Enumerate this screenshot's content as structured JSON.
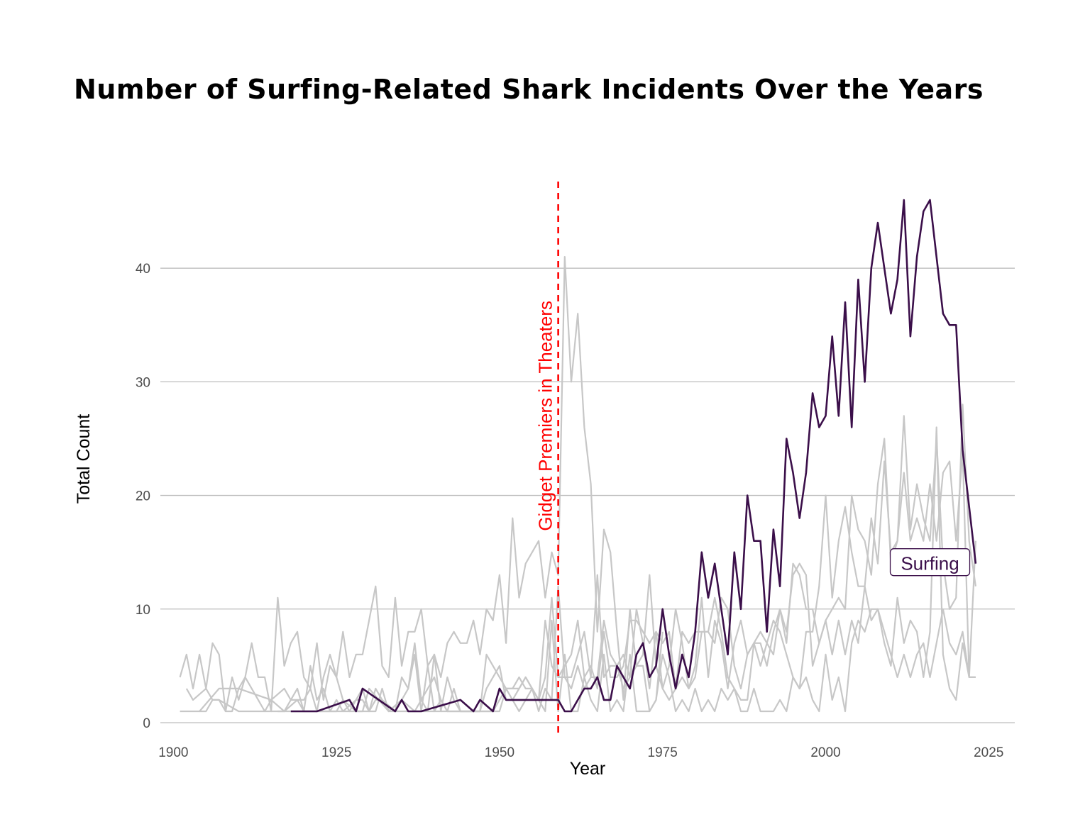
{
  "chart_data": {
    "type": "line",
    "title": "Number of Surfing-Related Shark Incidents Over the Years",
    "xlabel": "Year",
    "ylabel": "Total Count",
    "xlim": [
      1898,
      2029
    ],
    "ylim": [
      -0.5,
      48
    ],
    "x_ticks": [
      1900,
      1925,
      1950,
      1975,
      2000,
      2025
    ],
    "y_ticks": [
      0,
      10,
      20,
      30,
      40
    ],
    "grid": "horizontal major",
    "highlight_color": "#3b0f4a",
    "background_color": "#c7c7c7",
    "annotation": {
      "text": "Gidget Premiers in Theaters",
      "x": 1959,
      "color": "#ff0000",
      "style": "dashed vertical line"
    },
    "highlight_label": {
      "text": "Surfing",
      "x": 2016,
      "y": 14
    },
    "highlight": {
      "name": "Surfing",
      "x": [
        1918,
        1922,
        1927,
        1928,
        1929,
        1934,
        1935,
        1936,
        1938,
        1944,
        1946,
        1947,
        1949,
        1950,
        1951,
        1952,
        1953,
        1954,
        1955,
        1956,
        1957,
        1958,
        1959,
        1960,
        1961,
        1963,
        1964,
        1965,
        1966,
        1967,
        1968,
        1970,
        1971,
        1972,
        1973,
        1974,
        1975,
        1976,
        1977,
        1978,
        1979,
        1980,
        1981,
        1982,
        1983,
        1984,
        1985,
        1986,
        1987,
        1988,
        1989,
        1990,
        1991,
        1992,
        1993,
        1994,
        1995,
        1996,
        1997,
        1998,
        1999,
        2000,
        2001,
        2002,
        2003,
        2004,
        2005,
        2006,
        2007,
        2008,
        2009,
        2010,
        2011,
        2012,
        2013,
        2014,
        2015,
        2016,
        2017,
        2018,
        2019,
        2020,
        2021,
        2022,
        2023
      ],
      "y": [
        1,
        1,
        2,
        1,
        3,
        1,
        2,
        1,
        1,
        2,
        1,
        2,
        1,
        3,
        2,
        2,
        2,
        2,
        2,
        2,
        2,
        2,
        2,
        1,
        1,
        3,
        3,
        4,
        2,
        2,
        5,
        3,
        6,
        7,
        4,
        5,
        10,
        6,
        3,
        6,
        4,
        8,
        15,
        11,
        14,
        10,
        6,
        15,
        10,
        20,
        16,
        16,
        8,
        17,
        12,
        25,
        22,
        18,
        22,
        29,
        26,
        27,
        34,
        27,
        37,
        26,
        39,
        30,
        40,
        44,
        40,
        36,
        39,
        46,
        34,
        41,
        45,
        46,
        41,
        36,
        35,
        35,
        24,
        19,
        14
      ]
    },
    "background_series": [
      {
        "x": [
          1901,
          1902,
          1903,
          1904,
          1905,
          1906,
          1907,
          1908,
          1909,
          1910,
          1911,
          1912,
          1913,
          1914,
          1915,
          1916,
          1917,
          1918,
          1919,
          1920,
          1921,
          1922,
          1923,
          1924,
          1925,
          1926,
          1927,
          1928,
          1929,
          1930,
          1931,
          1932,
          1933,
          1934,
          1935,
          1936,
          1937,
          1938,
          1939,
          1940,
          1941,
          1942,
          1943,
          1944,
          1945,
          1946,
          1947,
          1948,
          1949,
          1950,
          1951,
          1952,
          1953,
          1954,
          1955,
          1956,
          1957,
          1958,
          1959,
          1960,
          1961,
          1962,
          1963,
          1964,
          1965,
          1966,
          1967,
          1968,
          1969,
          1970,
          1971,
          1972,
          1973,
          1974,
          1975
        ],
        "y": [
          4,
          6,
          3,
          6,
          3,
          7,
          6,
          1,
          4,
          2,
          4,
          7,
          4,
          4,
          1,
          11,
          5,
          7,
          8,
          4,
          3,
          7,
          2,
          5,
          4,
          8,
          4,
          6,
          6,
          9,
          12,
          5,
          4,
          11,
          5,
          8,
          8,
          10,
          5,
          6,
          4,
          7,
          8,
          7,
          7,
          9,
          6,
          10,
          9,
          13,
          7,
          18,
          11,
          14,
          15,
          16,
          11,
          15,
          13,
          41,
          30,
          36,
          26,
          21,
          8,
          17,
          15,
          8,
          2,
          10,
          5,
          5,
          1,
          2,
          8
        ]
      },
      {
        "x": [
          1902,
          1903,
          1905,
          1906,
          1907,
          1908,
          1909,
          1910,
          1911,
          1913,
          1914,
          1915,
          1917,
          1918,
          1920,
          1921,
          1922,
          1923,
          1924,
          1925,
          1926,
          1927,
          1928,
          1929,
          1930,
          1931,
          1932,
          1934,
          1935,
          1936,
          1937,
          1938,
          1939,
          1940,
          1941,
          1942,
          1943,
          1944,
          1945,
          1946,
          1947,
          1948,
          1949,
          1950,
          1951,
          1952,
          1953,
          1954,
          1955,
          1956,
          1957,
          1958,
          1959,
          1960,
          1961,
          1962,
          1963,
          1964,
          1965,
          1966,
          1967,
          1968,
          1969,
          1970,
          1971,
          1972,
          1973,
          1974,
          1975,
          1976,
          1977,
          1978,
          1979,
          1980,
          1981,
          1982,
          1983,
          1984,
          1985,
          1986,
          1987,
          1988,
          1989,
          1990,
          1991,
          1992,
          1993,
          1994,
          1995,
          1996,
          1997,
          1998,
          1999,
          2000,
          2001,
          2002,
          2003,
          2004,
          2005,
          2006,
          2007,
          2008,
          2009,
          2010,
          2011,
          2012,
          2013,
          2014,
          2015,
          2016,
          2017,
          2018,
          2019,
          2020,
          2021,
          2022,
          2023
        ],
        "y": [
          3,
          2,
          3,
          2,
          2,
          1,
          1,
          3,
          4,
          2,
          1,
          2,
          1,
          2,
          2,
          3,
          1,
          4,
          6,
          4,
          2,
          1,
          2,
          3,
          1,
          3,
          2,
          1,
          4,
          3,
          7,
          2,
          1,
          6,
          1,
          4,
          2,
          1,
          1,
          1,
          1,
          6,
          5,
          4,
          3,
          3,
          3,
          4,
          3,
          2,
          9,
          5,
          4,
          4,
          3,
          5,
          3,
          4,
          13,
          4,
          5,
          5,
          3,
          4,
          5,
          6,
          13,
          5,
          3,
          2,
          3,
          4,
          3,
          5,
          11,
          4,
          9,
          7,
          3,
          7,
          9,
          6,
          7,
          8,
          7,
          9,
          8,
          6,
          4,
          3,
          8,
          8,
          12,
          20,
          11,
          16,
          19,
          15,
          12,
          12,
          18,
          14,
          23,
          15,
          16,
          22,
          16,
          18,
          16,
          21,
          16,
          22,
          23,
          16,
          24,
          4,
          4
        ]
      },
      {
        "x": [
          1901,
          1902,
          1903,
          1904,
          1907,
          1910,
          1915,
          1917,
          1918,
          1919,
          1920,
          1921,
          1922,
          1923,
          1924,
          1925,
          1926,
          1928,
          1929,
          1930,
          1931,
          1932,
          1933,
          1935,
          1936,
          1937,
          1938,
          1939,
          1940,
          1941,
          1942,
          1943,
          1944,
          1945,
          1946,
          1947,
          1948,
          1949,
          1950,
          1951,
          1952,
          1953,
          1954,
          1955,
          1956,
          1957,
          1958,
          1959,
          1960,
          1961,
          1962,
          1963,
          1964,
          1965,
          1966,
          1967,
          1968,
          1969,
          1970,
          1971,
          1972,
          1973,
          1974,
          1975,
          1976,
          1977,
          1978,
          1979,
          1980,
          1981,
          1982,
          1983,
          1984,
          1985,
          1986,
          1987,
          1988,
          1989,
          1990,
          1991,
          1992,
          1993,
          1994,
          1995,
          1996,
          1997,
          1998,
          1999,
          2000,
          2001,
          2002,
          2003,
          2004,
          2005,
          2006,
          2007,
          2008,
          2009,
          2010,
          2011,
          2012,
          2013,
          2014,
          2015,
          2016,
          2017,
          2018,
          2019,
          2020,
          2021,
          2022,
          2023
        ],
        "y": [
          1,
          1,
          1,
          1,
          3,
          3,
          2,
          3,
          2,
          3,
          1,
          5,
          2,
          3,
          1,
          2,
          1,
          2,
          2,
          1,
          2,
          2,
          1,
          2,
          3,
          6,
          1,
          5,
          1,
          2,
          1,
          3,
          1,
          1,
          1,
          1,
          3,
          4,
          5,
          2,
          2,
          3,
          4,
          3,
          1,
          3,
          2,
          12,
          4,
          4,
          6,
          8,
          4,
          4,
          9,
          6,
          5,
          6,
          4,
          10,
          7,
          3,
          8,
          7,
          8,
          3,
          8,
          7,
          8,
          8,
          8,
          7,
          11,
          10,
          5,
          3,
          6,
          7,
          5,
          7,
          6,
          10,
          7,
          14,
          13,
          10,
          10,
          7,
          9,
          10,
          11,
          10,
          20,
          17,
          16,
          13,
          21,
          25,
          14,
          16,
          27,
          17,
          21,
          18,
          16,
          25,
          14,
          10,
          11,
          28,
          16,
          12
        ]
      },
      {
        "x": [
          1904,
          1905,
          1906,
          1907,
          1910,
          1915,
          1918,
          1919,
          1921,
          1922,
          1926,
          1927,
          1929,
          1930,
          1933,
          1934,
          1937,
          1939,
          1940,
          1943,
          1944,
          1946,
          1947,
          1948,
          1949,
          1950,
          1951,
          1952,
          1953,
          1954,
          1955,
          1956,
          1957,
          1958,
          1959,
          1960,
          1961,
          1962,
          1963,
          1964,
          1965,
          1966,
          1967,
          1968,
          1969,
          1970,
          1971,
          1972,
          1973,
          1974,
          1975,
          1976,
          1977,
          1978,
          1979,
          1980,
          1981,
          1982,
          1983,
          1984,
          1985,
          1986,
          1987,
          1988,
          1989,
          1990,
          1991,
          1992,
          1993,
          1994,
          1995,
          1996,
          1997,
          1998,
          1999,
          2000,
          2001,
          2002,
          2003,
          2004,
          2005,
          2006,
          2007,
          2008,
          2009,
          2010,
          2011,
          2012,
          2013,
          2014,
          2015,
          2016,
          2017,
          2018,
          2019,
          2020,
          2021,
          2022,
          2023
        ],
        "y": [
          1,
          1,
          2,
          2,
          1,
          1,
          1,
          1,
          1,
          1,
          1,
          1,
          1,
          3,
          1,
          1,
          1,
          1,
          1,
          1,
          1,
          1,
          1,
          1,
          1,
          2,
          3,
          3,
          4,
          3,
          3,
          2,
          4,
          11,
          4,
          5,
          6,
          9,
          4,
          5,
          3,
          8,
          4,
          4,
          5,
          9,
          9,
          8,
          7,
          8,
          3,
          5,
          10,
          7,
          3,
          4,
          8,
          8,
          11,
          8,
          4,
          3,
          2,
          2,
          7,
          7,
          5,
          8,
          10,
          8,
          13,
          14,
          13,
          5,
          7,
          9,
          6,
          9,
          6,
          9,
          7,
          12,
          9,
          10,
          8,
          6,
          4,
          6,
          4,
          6,
          7,
          4,
          7,
          10,
          7,
          6,
          8,
          4,
          16
        ]
      },
      {
        "x": [
          1916,
          1917,
          1919,
          1920,
          1922,
          1923,
          1925,
          1926,
          1928,
          1929,
          1931,
          1932,
          1933,
          1935,
          1937,
          1938,
          1940,
          1941,
          1942,
          1943,
          1944,
          1945,
          1946,
          1947,
          1948,
          1949,
          1950,
          1951,
          1952,
          1953,
          1954,
          1955,
          1956,
          1957,
          1958,
          1959,
          1960,
          1961,
          1962,
          1963,
          1964,
          1965,
          1966,
          1967,
          1968,
          1969,
          1970,
          1971,
          1972,
          1973,
          1974,
          1975,
          1976,
          1977,
          1978,
          1979,
          1980,
          1981,
          1982,
          1983,
          1984,
          1985,
          1986,
          1987,
          1988,
          1989,
          1990,
          1991,
          1992,
          1993,
          1994,
          1995,
          1996,
          1997,
          1998,
          1999,
          2000,
          2001,
          2002,
          2003,
          2004,
          2005,
          2006,
          2007,
          2008,
          2009,
          2010,
          2011,
          2012,
          2013,
          2014,
          2015,
          2016,
          2017,
          2018,
          2019,
          2020,
          2021,
          2022,
          2023
        ],
        "y": [
          1,
          1,
          2,
          1,
          1,
          1,
          1,
          2,
          1,
          1,
          1,
          3,
          1,
          2,
          1,
          2,
          4,
          2,
          1,
          1,
          1,
          1,
          1,
          1,
          1,
          1,
          1,
          3,
          2,
          1,
          2,
          3,
          2,
          1,
          9,
          1,
          6,
          1,
          1,
          4,
          2,
          1,
          6,
          1,
          2,
          1,
          6,
          1,
          1,
          1,
          2,
          6,
          4,
          1,
          2,
          1,
          3,
          1,
          2,
          1,
          3,
          2,
          3,
          1,
          1,
          3,
          1,
          1,
          1,
          2,
          1,
          4,
          3,
          4,
          2,
          1,
          6,
          2,
          4,
          1,
          7,
          9,
          8,
          10,
          10,
          7,
          5,
          11,
          7,
          9,
          8,
          4,
          8,
          26,
          6,
          3,
          2,
          7,
          4,
          4
        ]
      }
    ]
  }
}
